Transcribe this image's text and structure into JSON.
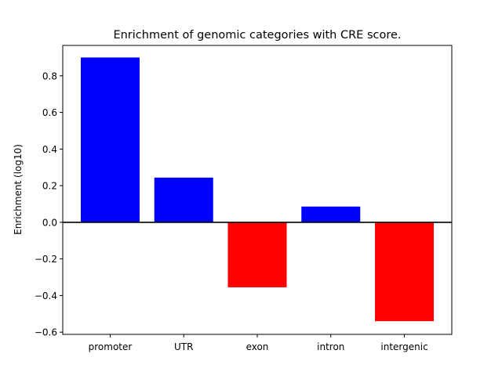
{
  "chart_data": {
    "type": "bar",
    "title": "Enrichment of genomic categories with CRE score.",
    "xlabel": "",
    "ylabel": "Enrichment (log10)",
    "categories": [
      "promoter",
      "UTR",
      "exon",
      "intron",
      "intergenic"
    ],
    "values": [
      0.9,
      0.244,
      -0.355,
      0.086,
      -0.54
    ],
    "bar_colors": [
      "#0000ff",
      "#0000ff",
      "#ff0000",
      "#0000ff",
      "#ff0000"
    ],
    "ylim": [
      -0.612,
      0.966
    ],
    "yticks": [
      -0.6,
      -0.4,
      -0.2,
      0.0,
      0.2,
      0.4,
      0.6,
      0.8
    ],
    "ytick_labels": [
      "−0.6",
      "−0.4",
      "−0.2",
      "0.0",
      "0.2",
      "0.4",
      "0.6",
      "0.8"
    ],
    "zero_line": true,
    "grid": false,
    "legend": "none"
  }
}
